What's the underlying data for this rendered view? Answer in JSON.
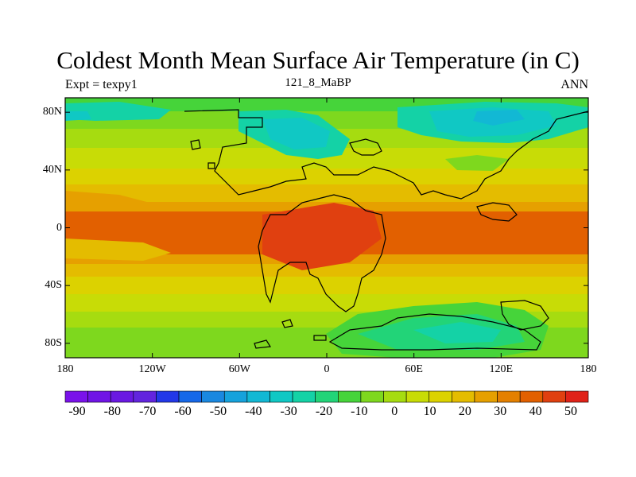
{
  "header": {
    "title": "Coldest Month Mean Surface Air Temperature (in C)",
    "left": "Expt = texpy1",
    "center": "121_8_MaBP",
    "right": "ANN"
  },
  "axes": {
    "lat_ticks": [
      {
        "value": 80,
        "label": "80N"
      },
      {
        "value": 40,
        "label": "40N"
      },
      {
        "value": 0,
        "label": "0"
      },
      {
        "value": -40,
        "label": "40S"
      },
      {
        "value": -80,
        "label": "80S"
      }
    ],
    "lon_ticks": [
      {
        "value": -180,
        "label": "180"
      },
      {
        "value": -120,
        "label": "120W"
      },
      {
        "value": -60,
        "label": "60W"
      },
      {
        "value": 0,
        "label": "0"
      },
      {
        "value": 60,
        "label": "60E"
      },
      {
        "value": 120,
        "label": "120E"
      },
      {
        "value": 180,
        "label": "180"
      }
    ],
    "lat_range": [
      -90,
      90
    ],
    "lon_range": [
      -180,
      180
    ]
  },
  "colorbar": {
    "labels": [
      "-90",
      "-80",
      "-70",
      "-60",
      "-50",
      "-40",
      "-30",
      "-20",
      "-10",
      "0",
      "10",
      "20",
      "30",
      "40",
      "50"
    ],
    "colors": [
      "#7a12ea",
      "#7014e6",
      "#6a18e2",
      "#6224de",
      "#2238e8",
      "#1668e8",
      "#1a88e0",
      "#16a2dc",
      "#12b8d4",
      "#10c8c4",
      "#14d2a6",
      "#22d478",
      "#46d43a",
      "#7ed81e",
      "#a6dc10",
      "#c8dc06",
      "#dcd200",
      "#e4bc00",
      "#e6a000",
      "#e48000",
      "#e26000",
      "#e04010",
      "#e02218"
    ]
  },
  "colors": {
    "coast": "#000000",
    "frame": "#000000"
  }
}
